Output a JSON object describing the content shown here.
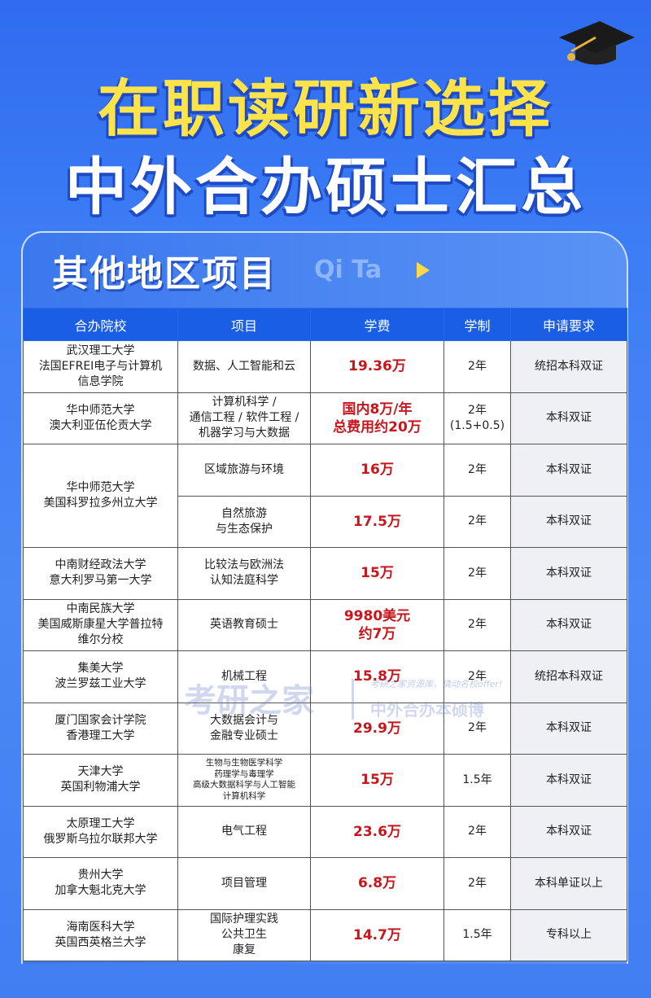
{
  "header": {
    "title_line1": "在职读研新选择",
    "title_line2": "中外合办硕士汇总"
  },
  "section": {
    "title": "其他地区项目",
    "pinyin": "Qi Ta"
  },
  "table": {
    "columns": [
      "合办院校",
      "项目",
      "学费",
      "学制",
      "申请要求"
    ],
    "rows": [
      {
        "school": "武汉理工大学\n法国EFREI电子与计算机\n信息学院",
        "program": "数据、人工智能和云",
        "fee": "19.36万",
        "duration": "2年",
        "requirement": "统招本科双证"
      },
      {
        "school": "华中师范大学\n澳大利亚伍伦贡大学",
        "program": "计算机科学 /\n通信工程 / 软件工程 /\n机器学习与大数据",
        "fee": "国内8万/年\n总费用约20万",
        "duration": "2年\n(1.5+0.5)",
        "requirement": "本科双证"
      },
      {
        "school": "华中师范大学\n美国科罗拉多州立大学",
        "rowspan": 2,
        "program": "区域旅游与环境",
        "fee": "16万",
        "duration": "2年",
        "requirement": "本科双证"
      },
      {
        "program": "自然旅游\n与生态保护",
        "fee": "17.5万",
        "duration": "2年",
        "requirement": "本科双证"
      },
      {
        "school": "中南财经政法大学\n意大利罗马第一大学",
        "program": "比较法与欧洲法\n认知法庭科学",
        "fee": "15万",
        "duration": "2年",
        "requirement": "本科双证"
      },
      {
        "school": "中南民族大学\n美国威斯康星大学普拉特\n维尔分校",
        "program": "英语教育硕士",
        "fee": "9980美元\n约7万",
        "duration": "2年",
        "requirement": "本科双证"
      },
      {
        "school": "集美大学\n波兰罗兹工业大学",
        "program": "机械工程",
        "fee": "15.8万",
        "duration": "2年",
        "requirement": "统招本科双证"
      },
      {
        "school": "厦门国家会计学院\n香港理工大学",
        "program": "大数据会计与\n金融专业硕士",
        "fee": "29.9万",
        "duration": "2年",
        "requirement": "本科双证"
      },
      {
        "school": "天津大学\n英国利物浦大学",
        "program": "生物与生物医学科学\n药理学与毒理学\n高级大数据科学与人工智能\n计算机科学",
        "small": true,
        "fee": "15万",
        "duration": "1.5年",
        "requirement": "本科双证"
      },
      {
        "school": "太原理工大学\n俄罗斯乌拉尔联邦大学",
        "program": "电气工程",
        "fee": "23.6万",
        "duration": "2年",
        "requirement": "本科双证"
      },
      {
        "school": "贵州大学\n加拿大魁北克大学",
        "program": "项目管理",
        "fee": "6.8万",
        "duration": "2年",
        "requirement": "本科单证以上"
      },
      {
        "school": "海南医科大学\n英国西英格兰大学",
        "program": "国际护理实践\n公共卫生\n康复",
        "fee": "14.7万",
        "duration": "1.5年",
        "requirement": "专科以上"
      }
    ]
  },
  "watermark": {
    "brand": "考研之家",
    "slogan": "考研之家资源库，撬动名校offer!",
    "tagline": "中外合办本硕博"
  },
  "colors": {
    "accent_yellow": "#ffe34a",
    "header_blue": "#1b5ee6",
    "fee_red": "#c8161d"
  }
}
